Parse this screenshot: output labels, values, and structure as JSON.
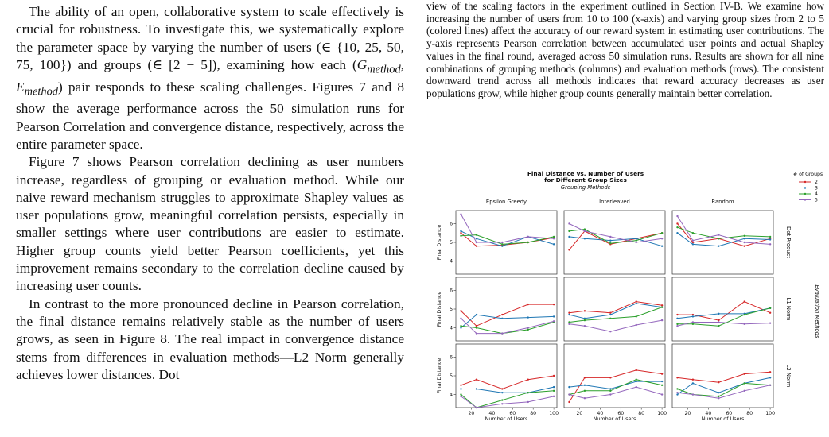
{
  "left_column": {
    "paragraphs": [
      "The ability of an open, collaborative system to scale effectively is crucial for robustness. To investigate this, we systematically explore the parameter space by varying the number of users (∈ {10, 25, 50, 75, 100}) and groups (∈ [2 − 5]), examining how each (G_method, E_method) pair responds to these scaling challenges. Figures 7 and 8 show the average performance across the 50 simulation runs for Pearson Correlation and convergence distance, respectively, across the entire parameter space.",
      "Figure 7 shows Pearson correlation declining as user numbers increase, regardless of grouping or evaluation method. While our naive reward mechanism struggles to approximate Shapley values as user populations grow, meaningful correlation persists, especially in smaller settings where user contributions are easier to estimate. Higher group counts yield better Pearson coefficients, yet this improvement remains secondary to the correlation decline caused by increasing user counts.",
      "In contrast to the more pronounced decline in Pearson correlation, the final distance remains relatively stable as the number of users grows, as seen in Figure 8. The real impact in convergence distance stems from differences in evaluation methods—L2 Norm generally achieves lower distances. Dot"
    ]
  },
  "right_column": {
    "caption": "view of the scaling factors in the experiment outlined in Section IV-B. We examine how increasing the number of users from 10 to 100 (x-axis) and varying group sizes from 2 to 5 (colored lines) affect the accuracy of our reward system in estimating user contributions. The y-axis represents Pearson correlation between accumulated user points and actual Shapley values in the final round, averaged across 50 simulation runs. Results are shown for all nine combinations of grouping methods (columns) and evaluation methods (rows). The consistent downward trend across all methods indicates that reward accuracy decreases as user populations grow, while higher group counts generally maintain better correlation."
  },
  "chart_data": {
    "type": "line",
    "title": "Final Distance vs. Number of Users for Different Group Sizes",
    "title_lines": [
      "Final Distance vs. Number of Users",
      "for Different Group Sizes"
    ],
    "column_header": "Grouping Methods",
    "row_header": "Evaluation Methods",
    "columns": [
      "Epsilon Greedy",
      "Interleaved",
      "Random"
    ],
    "rows": [
      "Dot Product",
      "L1 Norm",
      "L2 Norm"
    ],
    "xlabel": "Number of Users",
    "ylabel": "Final Distance",
    "x": [
      10,
      25,
      50,
      75,
      100
    ],
    "x_ticks": [
      20,
      40,
      60,
      80,
      100
    ],
    "y_ticks": [
      4,
      5,
      6
    ],
    "ylim": [
      3.3,
      6.7
    ],
    "legend": {
      "title": "# of Groups",
      "placement": "top-right",
      "entries": [
        "2",
        "3",
        "4",
        "5"
      ]
    },
    "colors": {
      "2": "#d62728",
      "3": "#1f77b4",
      "4": "#2ca02c",
      "5": "#9467bd"
    },
    "grid": false,
    "panels": [
      [
        {
          "series": [
            {
              "name": "2",
              "values": [
                5.5,
                4.8,
                4.85,
                5.0,
                5.25
              ]
            },
            {
              "name": "3",
              "values": [
                5.6,
                5.2,
                4.8,
                5.3,
                4.9
              ]
            },
            {
              "name": "4",
              "values": [
                5.35,
                5.4,
                4.9,
                5.0,
                5.3
              ]
            },
            {
              "name": "5",
              "values": [
                6.5,
                5.0,
                5.0,
                5.3,
                5.2
              ]
            }
          ]
        },
        {
          "series": [
            {
              "name": "2",
              "values": [
                4.6,
                5.6,
                4.9,
                5.2,
                5.5
              ]
            },
            {
              "name": "3",
              "values": [
                5.3,
                5.2,
                5.1,
                5.2,
                4.8
              ]
            },
            {
              "name": "4",
              "values": [
                5.6,
                5.7,
                4.95,
                5.1,
                5.5
              ]
            },
            {
              "name": "5",
              "values": [
                6.0,
                5.6,
                5.3,
                5.0,
                5.2
              ]
            }
          ]
        },
        {
          "series": [
            {
              "name": "2",
              "values": [
                6.0,
                5.0,
                5.2,
                4.8,
                5.2
              ]
            },
            {
              "name": "3",
              "values": [
                5.5,
                4.9,
                4.8,
                5.2,
                5.15
              ]
            },
            {
              "name": "4",
              "values": [
                5.8,
                5.5,
                5.2,
                5.35,
                5.3
              ]
            },
            {
              "name": "5",
              "values": [
                6.4,
                5.1,
                5.4,
                5.0,
                4.9
              ]
            }
          ]
        }
      ],
      [
        {
          "series": [
            {
              "name": "2",
              "values": [
                4.9,
                4.1,
                4.7,
                5.25,
                5.25
              ]
            },
            {
              "name": "3",
              "values": [
                4.0,
                4.7,
                4.5,
                4.55,
                4.6
              ]
            },
            {
              "name": "4",
              "values": [
                4.1,
                4.0,
                3.7,
                3.9,
                4.3
              ]
            },
            {
              "name": "5",
              "values": [
                4.5,
                3.7,
                3.7,
                4.0,
                4.35
              ]
            }
          ]
        },
        {
          "series": [
            {
              "name": "2",
              "values": [
                4.8,
                4.9,
                4.8,
                5.4,
                5.2
              ]
            },
            {
              "name": "3",
              "values": [
                4.7,
                4.5,
                4.7,
                5.3,
                5.1
              ]
            },
            {
              "name": "4",
              "values": [
                4.3,
                4.4,
                4.5,
                4.6,
                5.1
              ]
            },
            {
              "name": "5",
              "values": [
                4.2,
                4.1,
                3.8,
                4.15,
                4.4
              ]
            }
          ]
        },
        {
          "series": [
            {
              "name": "2",
              "values": [
                4.7,
                4.7,
                4.4,
                5.4,
                4.8
              ]
            },
            {
              "name": "3",
              "values": [
                4.5,
                4.6,
                4.75,
                4.75,
                5.05
              ]
            },
            {
              "name": "4",
              "values": [
                4.2,
                4.2,
                4.1,
                4.7,
                5.05
              ]
            },
            {
              "name": "5",
              "values": [
                4.1,
                4.3,
                4.3,
                4.2,
                4.25
              ]
            }
          ]
        }
      ],
      [
        {
          "series": [
            {
              "name": "2",
              "values": [
                4.5,
                4.8,
                4.3,
                4.8,
                5.0
              ]
            },
            {
              "name": "3",
              "values": [
                4.3,
                4.3,
                4.1,
                4.1,
                4.4
              ]
            },
            {
              "name": "4",
              "values": [
                4.0,
                3.3,
                3.7,
                4.1,
                4.2
              ]
            },
            {
              "name": "5",
              "values": [
                3.9,
                3.3,
                3.5,
                3.6,
                3.9
              ]
            }
          ]
        },
        {
          "series": [
            {
              "name": "2",
              "values": [
                3.6,
                4.9,
                4.9,
                5.3,
                5.1
              ]
            },
            {
              "name": "3",
              "values": [
                4.4,
                4.5,
                4.3,
                4.7,
                4.7
              ]
            },
            {
              "name": "4",
              "values": [
                4.0,
                4.2,
                4.2,
                4.8,
                4.5
              ]
            },
            {
              "name": "5",
              "values": [
                4.0,
                3.8,
                4.0,
                4.4,
                4.0
              ]
            }
          ]
        },
        {
          "series": [
            {
              "name": "2",
              "values": [
                4.9,
                4.8,
                4.65,
                5.1,
                5.2
              ]
            },
            {
              "name": "3",
              "values": [
                4.0,
                4.6,
                4.1,
                4.6,
                4.9
              ]
            },
            {
              "name": "4",
              "values": [
                4.3,
                4.0,
                3.9,
                4.6,
                4.5
              ]
            },
            {
              "name": "5",
              "values": [
                4.1,
                4.0,
                3.8,
                4.2,
                4.5
              ]
            }
          ]
        }
      ]
    ]
  }
}
